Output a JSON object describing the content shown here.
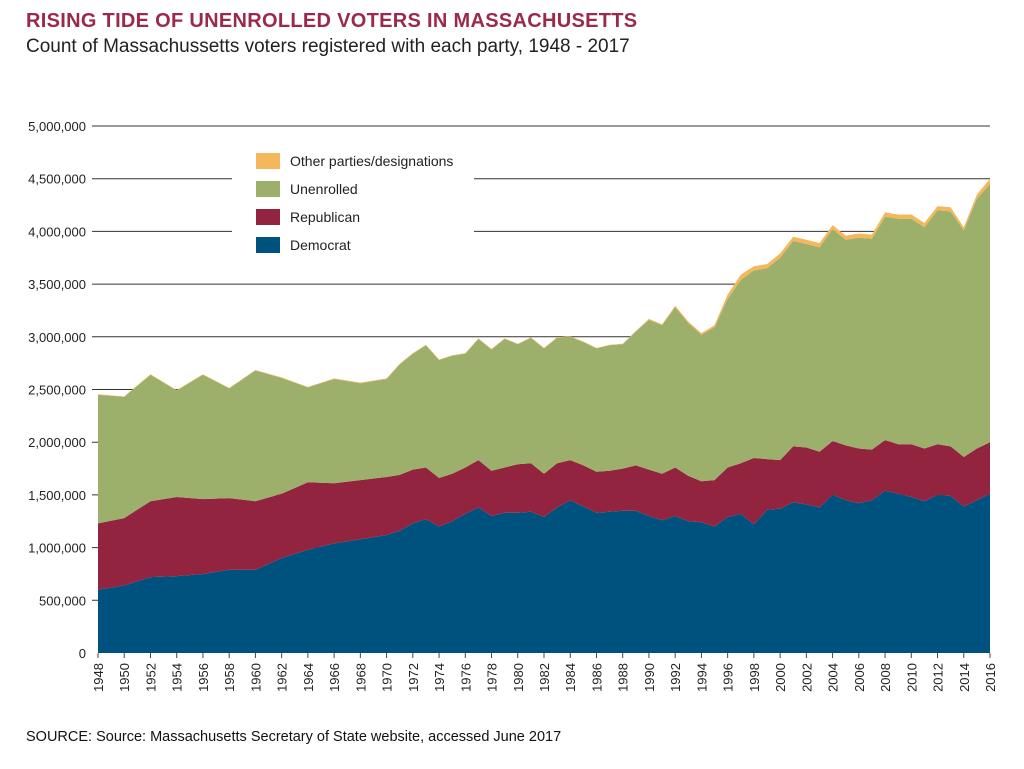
{
  "colors": {
    "title": "#9b2a4a",
    "Democrat": "#00527e",
    "Republican": "#92243f",
    "Unenrolled": "#9caf6b",
    "Other parties/designations": "#f5b75c",
    "grid": "#333333"
  },
  "chart_data": {
    "type": "area",
    "stacked": true,
    "title": "RISING TIDE OF UNENROLLED VOTERS IN MASSACHUSETTS",
    "subtitle": "Count of Massachussetts voters registered with each party, 1948 - 2017",
    "source": "SOURCE: Source: Massachusetts Secretary of State website, accessed June 2017",
    "xlabel": "",
    "ylabel": "",
    "xlim": [
      1948,
      2016
    ],
    "ylim": [
      0,
      5000000
    ],
    "grid": true,
    "legend_position": "top-left",
    "y_ticks": [
      0,
      500000,
      1000000,
      1500000,
      2000000,
      2500000,
      3000000,
      3500000,
      4000000,
      4500000,
      5000000
    ],
    "y_tick_labels": [
      "0",
      "500,000",
      "1,000,000",
      "1,500,000",
      "2,000,000",
      "2,500,000",
      "3,000,000",
      "3,500,000",
      "4,000,000",
      "4,500,000",
      "5,000,000"
    ],
    "x_tick_labels": [
      "1948",
      "1950",
      "1952",
      "1954",
      "1956",
      "1958",
      "1960",
      "1962",
      "1964",
      "1966",
      "1968",
      "1970",
      "1972",
      "1974",
      "1976",
      "1978",
      "1980",
      "1982",
      "1984",
      "1986",
      "1988",
      "1990",
      "1992",
      "1994",
      "1996",
      "1998",
      "2000",
      "2002",
      "2004",
      "2006",
      "2008",
      "2010",
      "2012",
      "2014",
      "2016"
    ],
    "legend": [
      "Other parties/designations",
      "Unenrolled",
      "Republican",
      "Democrat"
    ],
    "x": [
      1948,
      1950,
      1952,
      1954,
      1956,
      1958,
      1960,
      1962,
      1964,
      1966,
      1968,
      1970,
      1971,
      1972,
      1973,
      1974,
      1975,
      1976,
      1977,
      1978,
      1979,
      1980,
      1981,
      1982,
      1983,
      1984,
      1985,
      1986,
      1987,
      1988,
      1989,
      1990,
      1991,
      1992,
      1993,
      1994,
      1995,
      1996,
      1997,
      1998,
      1999,
      2000,
      2001,
      2002,
      2003,
      2004,
      2005,
      2006,
      2007,
      2008,
      2009,
      2010,
      2011,
      2012,
      2013,
      2014,
      2015,
      2016
    ],
    "series": [
      {
        "name": "Democrat",
        "values": [
          600000,
          640000,
          720000,
          730000,
          750000,
          790000,
          790000,
          900000,
          980000,
          1040000,
          1080000,
          1120000,
          1160000,
          1230000,
          1270000,
          1200000,
          1250000,
          1320000,
          1380000,
          1300000,
          1330000,
          1330000,
          1340000,
          1290000,
          1380000,
          1450000,
          1390000,
          1330000,
          1340000,
          1350000,
          1350000,
          1300000,
          1260000,
          1300000,
          1250000,
          1240000,
          1200000,
          1290000,
          1320000,
          1220000,
          1360000,
          1370000,
          1430000,
          1410000,
          1380000,
          1500000,
          1450000,
          1420000,
          1450000,
          1540000,
          1510000,
          1480000,
          1440000,
          1500000,
          1490000,
          1390000,
          1450000,
          1510000
        ]
      },
      {
        "name": "Republican",
        "values": [
          630000,
          640000,
          720000,
          750000,
          710000,
          680000,
          650000,
          610000,
          640000,
          570000,
          560000,
          550000,
          530000,
          510000,
          490000,
          460000,
          450000,
          440000,
          450000,
          430000,
          430000,
          460000,
          460000,
          410000,
          420000,
          380000,
          390000,
          390000,
          390000,
          400000,
          430000,
          440000,
          440000,
          460000,
          430000,
          390000,
          440000,
          470000,
          480000,
          630000,
          480000,
          460000,
          530000,
          540000,
          530000,
          510000,
          520000,
          520000,
          480000,
          480000,
          470000,
          500000,
          500000,
          480000,
          470000,
          470000,
          490000,
          490000
        ]
      },
      {
        "name": "Unenrolled",
        "values": [
          1220000,
          1150000,
          1200000,
          1010000,
          1180000,
          1040000,
          1240000,
          1100000,
          900000,
          990000,
          920000,
          930000,
          1050000,
          1100000,
          1160000,
          1120000,
          1120000,
          1080000,
          1150000,
          1150000,
          1220000,
          1140000,
          1190000,
          1190000,
          1190000,
          1170000,
          1170000,
          1170000,
          1190000,
          1180000,
          1270000,
          1420000,
          1410000,
          1520000,
          1450000,
          1390000,
          1450000,
          1600000,
          1740000,
          1780000,
          1810000,
          1920000,
          1950000,
          1930000,
          1940000,
          2010000,
          1950000,
          2000000,
          2000000,
          2120000,
          2140000,
          2140000,
          2100000,
          2220000,
          2230000,
          2150000,
          2370000,
          2450000
        ]
      },
      {
        "name": "Other parties/designations",
        "values": [
          5000,
          5000,
          5000,
          5000,
          5000,
          5000,
          5000,
          5000,
          5000,
          5000,
          5000,
          5000,
          5000,
          5000,
          5000,
          5000,
          5000,
          5000,
          5000,
          5000,
          5000,
          5000,
          5000,
          5000,
          5000,
          5000,
          5000,
          5000,
          5000,
          5000,
          5000,
          10000,
          10000,
          15000,
          15000,
          15000,
          20000,
          40000,
          50000,
          40000,
          40000,
          40000,
          40000,
          40000,
          40000,
          40000,
          40000,
          40000,
          40000,
          40000,
          40000,
          40000,
          40000,
          40000,
          40000,
          30000,
          40000,
          50000
        ]
      }
    ]
  }
}
